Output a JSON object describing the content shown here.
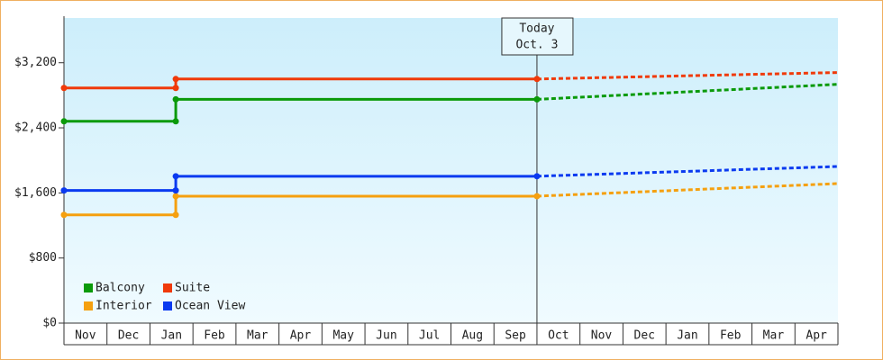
{
  "chart_data": {
    "type": "step-line",
    "categories": [
      "Nov",
      "Dec",
      "Jan",
      "Feb",
      "Mar",
      "Apr",
      "May",
      "Jun",
      "Jul",
      "Aug",
      "Sep",
      "Oct",
      "Nov",
      "Dec",
      "Jan",
      "Feb",
      "Mar",
      "Apr"
    ],
    "xlim": [
      0,
      18
    ],
    "ylim": [
      0,
      3750
    ],
    "yticks": [
      {
        "value": 0,
        "label": "$0"
      },
      {
        "value": 800,
        "label": "$800"
      },
      {
        "value": 1600,
        "label": "$1,600"
      },
      {
        "value": 2400,
        "label": "$2,400"
      },
      {
        "value": 3200,
        "label": "$3,200"
      }
    ],
    "legend": "bottom-left",
    "today": {
      "x": 11,
      "label": [
        "Today",
        "Oct. 3"
      ]
    },
    "series": [
      {
        "name": "Balcony",
        "color": "#0a9a0a",
        "x": [
          0,
          2.6,
          2.6,
          11
        ],
        "values": [
          2480,
          2480,
          2750,
          2750
        ],
        "forecast": {
          "x": [
            11,
            18
          ],
          "values": [
            2750,
            2935
          ]
        }
      },
      {
        "name": "Suite",
        "color": "#f03a0a",
        "x": [
          0,
          2.6,
          2.6,
          11
        ],
        "values": [
          2890,
          2890,
          3000,
          3000
        ],
        "forecast": {
          "x": [
            11,
            18
          ],
          "values": [
            3000,
            3080
          ]
        }
      },
      {
        "name": "Interior",
        "color": "#f5a00f",
        "x": [
          0,
          2.6,
          2.6,
          11
        ],
        "values": [
          1330,
          1330,
          1560,
          1560
        ],
        "forecast": {
          "x": [
            11,
            18
          ],
          "values": [
            1560,
            1715
          ]
        }
      },
      {
        "name": "Ocean View",
        "color": "#0a3af0",
        "x": [
          0,
          2.6,
          2.6,
          11
        ],
        "values": [
          1630,
          1630,
          1805,
          1805
        ],
        "forecast": {
          "x": [
            11,
            18
          ],
          "values": [
            1805,
            1925
          ]
        }
      }
    ]
  }
}
